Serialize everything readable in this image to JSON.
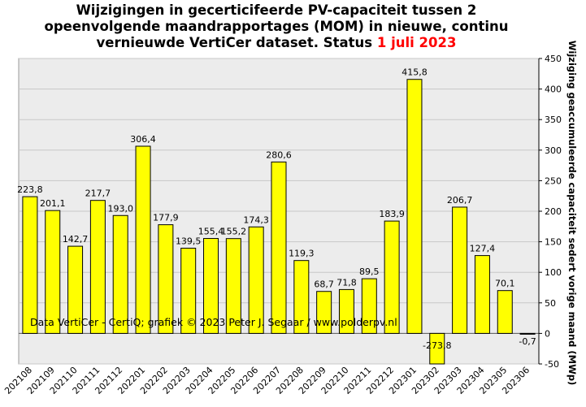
{
  "title": {
    "line1": "Wijzigingen  in gecerticifeerde PV-capaciteit tussen 2",
    "line2": "opeenvolgende maandrapportages (MOM) in nieuwe, continu",
    "line3_prefix": "vernieuwde VertiCer dataset. Status ",
    "line3_date": "1 juli  2023"
  },
  "credit": "Data VertiCer - CertiQ; grafiek © 2023  Peter J. Segaar / www.polderpv.nl",
  "colors": {
    "bar_fill": "#ffff00",
    "bar_stroke": "#000000",
    "plot_background": "#ececec",
    "grid": "#c8c8c8",
    "title_date": "#ff0000"
  },
  "chart_data": {
    "type": "bar",
    "title": "Wijzigingen  in gecerticifeerde PV-capaciteit tussen 2 opeenvolgende maandrapportages (MOM) in nieuwe, continu vernieuwde VertiCer dataset. Status 1 juli  2023",
    "xlabel": "",
    "ylabel": "Wijziging geaccumuleerde capaciteit sedert vorige maand (MWp)",
    "ylim": [
      -50,
      450
    ],
    "yticks": [
      -50,
      0,
      50,
      100,
      150,
      200,
      250,
      300,
      350,
      400,
      450
    ],
    "y_axis_side": "right",
    "grid": true,
    "categories": [
      "202108",
      "202109",
      "202110",
      "202111",
      "202112",
      "202201",
      "202202",
      "202203",
      "202204",
      "202205",
      "202206",
      "202207",
      "202208",
      "202209",
      "202210",
      "202211",
      "202212",
      "202301",
      "202302",
      "202303",
      "202304",
      "202305",
      "202306"
    ],
    "values": [
      223.8,
      201.1,
      142.7,
      217.7,
      193.0,
      306.4,
      177.9,
      139.5,
      155.4,
      155.2,
      174.3,
      280.6,
      119.3,
      68.7,
      71.8,
      89.5,
      183.9,
      415.8,
      -273.8,
      206.7,
      127.4,
      70.1,
      -0.7
    ],
    "data_labels": [
      "223,8",
      "201,1",
      "142,7",
      "217,7",
      "193,0",
      "306,4",
      "177,9",
      "139,5",
      "155,4",
      "155,2",
      "174,3",
      "280,6",
      "119,3",
      "68,7",
      "71,8",
      "89,5",
      "183,9",
      "415,8",
      "-273,8",
      "206,7",
      "127,4",
      "70,1",
      "-0,7"
    ]
  }
}
